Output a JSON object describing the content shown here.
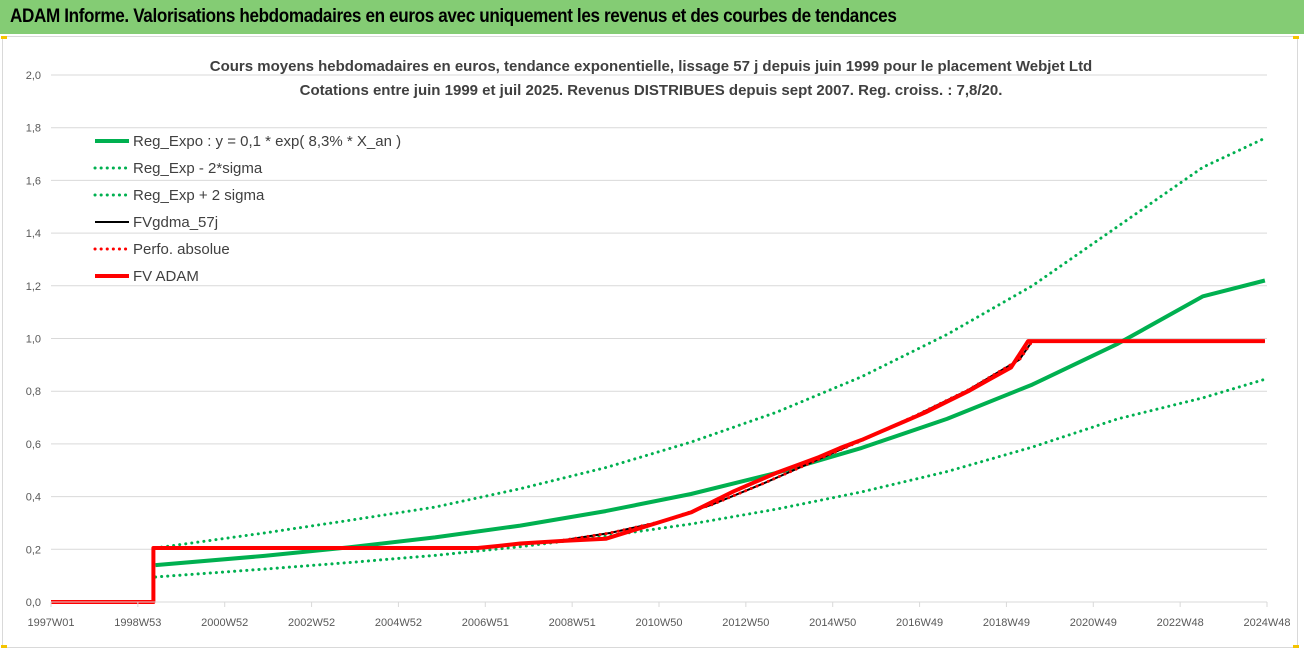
{
  "page": {
    "header_title": "ADAM Informe. Valorisations hebdomadaires en euros avec uniquement les revenus et des courbes de tendances"
  },
  "colors": {
    "header_bg": "#84cc74",
    "green": "#00b050",
    "red": "#ff0000",
    "black": "#000000",
    "grid": "#d9d9d9"
  },
  "chart_data": {
    "type": "line",
    "title_line1": "Cours moyens hebdomadaires en euros, tendance exponentielle, lissage 57 j depuis juin 1999 pour le placement Webjet Ltd",
    "title_line2": "Cotations entre juin 1999 et juil 2025. Revenus DISTRIBUES depuis sept 2007. Reg. croiss. : 7,8/20.",
    "xlabel": "",
    "ylabel": "",
    "ylim": [
      0,
      2
    ],
    "xlim": [
      1997.0,
      2025.5
    ],
    "y_ticks": [
      "0,0",
      "0,2",
      "0,4",
      "0,6",
      "0,8",
      "1,0",
      "1,2",
      "1,4",
      "1,6",
      "1,8",
      "2,0"
    ],
    "x_tick_labels": [
      "1997W01",
      "1998W53",
      "2000W52",
      "2002W52",
      "2004W52",
      "2006W51",
      "2008W51",
      "2010W50",
      "2012W50",
      "2014W50",
      "2016W49",
      "2018W49",
      "2020W49",
      "2022W48",
      "2024W48"
    ],
    "grid": "horizontal",
    "legend_position": "top-left",
    "series": [
      {
        "name": "Reg_Expo : y = 0,1 * exp( 8,3% *  X_an )",
        "style": "solid-thick",
        "color": "#00b050",
        "x": [
          1999.45,
          2002,
          2004,
          2006,
          2008,
          2010,
          2012,
          2014,
          2016,
          2018,
          2020,
          2022,
          2024,
          2025.45
        ],
        "y": [
          0.14,
          0.175,
          0.208,
          0.245,
          0.29,
          0.345,
          0.41,
          0.49,
          0.585,
          0.695,
          0.825,
          0.98,
          1.16,
          1.22
        ]
      },
      {
        "name": "Reg_Exp - 2*sigma",
        "style": "dotted",
        "color": "#00b050",
        "x": [
          1999.45,
          2002,
          2004,
          2006,
          2008,
          2010,
          2012,
          2014,
          2016,
          2018,
          2020,
          2022,
          2024,
          2025.45
        ],
        "y": [
          0.095,
          0.125,
          0.15,
          0.177,
          0.21,
          0.25,
          0.296,
          0.352,
          0.418,
          0.495,
          0.588,
          0.695,
          0.775,
          0.845
        ]
      },
      {
        "name": "Reg_Exp + 2 sigma",
        "style": "dotted",
        "color": "#00b050",
        "x": [
          1999.45,
          2002,
          2004,
          2006,
          2008,
          2010,
          2012,
          2014,
          2016,
          2018,
          2020,
          2022,
          2024,
          2025.45
        ],
        "y": [
          0.205,
          0.262,
          0.31,
          0.36,
          0.43,
          0.51,
          0.607,
          0.72,
          0.855,
          1.015,
          1.2,
          1.425,
          1.65,
          1.76
        ]
      },
      {
        "name": "FVgdma_57j",
        "style": "solid",
        "color": "#000000",
        "x": [
          1999.45,
          2007.0,
          2007.7,
          2008.9,
          2010.1,
          2011.3,
          2012.5,
          2013.7,
          2014.9,
          2016.1,
          2017.3,
          2018.5,
          2019.7,
          2020.0,
          2025.45
        ],
        "y": [
          0.205,
          0.205,
          0.215,
          0.232,
          0.262,
          0.305,
          0.37,
          0.45,
          0.535,
          0.62,
          0.71,
          0.805,
          0.92,
          0.99,
          0.99
        ]
      },
      {
        "name": "Perfo. absolue",
        "style": "dotted",
        "color": "#ff0000",
        "x": [
          1999.45,
          2007.0,
          2007.7,
          2008.9,
          2010.1,
          2011.3,
          2012.5,
          2013.7,
          2014.9,
          2016.1,
          2017.3,
          2018.5,
          2019.7,
          2020.0,
          2025.45
        ],
        "y": [
          0.205,
          0.205,
          0.215,
          0.232,
          0.262,
          0.305,
          0.37,
          0.45,
          0.535,
          0.62,
          0.71,
          0.805,
          0.92,
          0.99,
          0.99
        ]
      },
      {
        "name": "FV ADAM",
        "style": "solid-thick",
        "color": "#ff0000",
        "x": [
          1997.0,
          1999.4,
          1999.4,
          2007.0,
          2007.5,
          2008.0,
          2009.0,
          2010.0,
          2010.5,
          2011.0,
          2011.5,
          2012.0,
          2012.5,
          2013.0,
          2013.5,
          2014.0,
          2014.5,
          2015.0,
          2015.5,
          2016.0,
          2016.5,
          2017.0,
          2017.5,
          2018.0,
          2018.5,
          2019.0,
          2019.5,
          2019.9,
          2025.45
        ],
        "y": [
          0.0,
          0.0,
          0.205,
          0.205,
          0.213,
          0.222,
          0.232,
          0.24,
          0.265,
          0.29,
          0.315,
          0.34,
          0.38,
          0.42,
          0.455,
          0.49,
          0.52,
          0.55,
          0.585,
          0.615,
          0.65,
          0.685,
          0.72,
          0.76,
          0.8,
          0.845,
          0.89,
          0.99,
          0.99
        ]
      }
    ]
  }
}
